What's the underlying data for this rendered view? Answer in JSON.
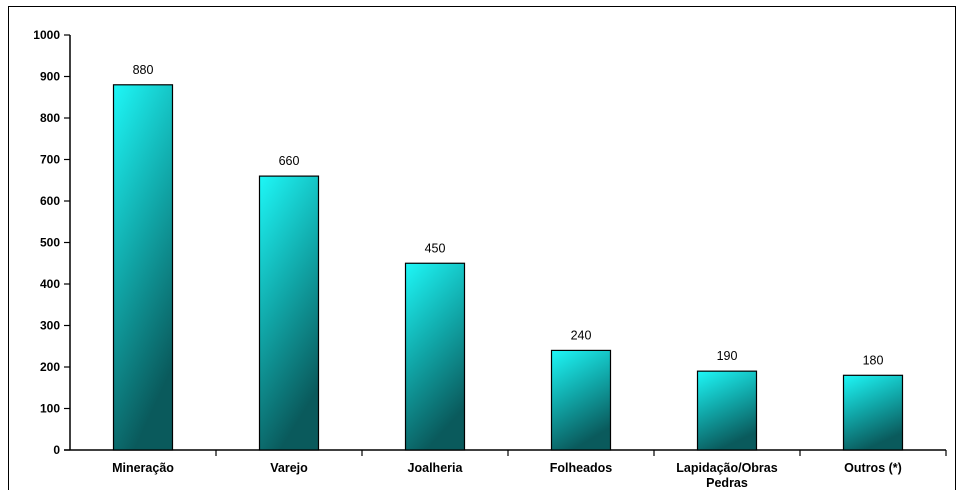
{
  "chart_data": {
    "type": "bar",
    "categories": [
      "Mineração",
      "Varejo",
      "Joalheria",
      "Folheados",
      "Lapidação/Obras Pedras",
      "Outros (*)"
    ],
    "category_lines": [
      [
        "Mineração"
      ],
      [
        "Varejo"
      ],
      [
        "Joalheria"
      ],
      [
        "Folheados"
      ],
      [
        "Lapidação/Obras",
        "Pedras"
      ],
      [
        "Outros (*)"
      ]
    ],
    "values": [
      880,
      660,
      450,
      240,
      190,
      180
    ],
    "data_labels": [
      "880",
      "660",
      "450",
      "240",
      "190",
      "180"
    ],
    "title": "",
    "xlabel": "",
    "ylabel": "",
    "ylim": [
      0,
      1000
    ],
    "yticks": [
      0,
      100,
      200,
      300,
      400,
      500,
      600,
      700,
      800,
      900,
      1000
    ],
    "grid": false,
    "legend": "none",
    "colors": {
      "bar_light": "#1ef7f7",
      "bar_mid": "#11a9aa",
      "bar_dark": "#0a5a5c",
      "axis": "#000000"
    }
  }
}
